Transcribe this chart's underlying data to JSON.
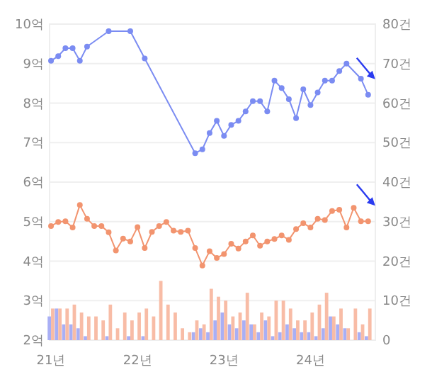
{
  "chart_data": {
    "type": "line",
    "x": [
      "2021-01",
      "2021-02",
      "2021-03",
      "2021-04",
      "2021-05",
      "2021-06",
      "2021-07",
      "2021-08",
      "2021-09",
      "2021-10",
      "2021-11",
      "2021-12",
      "2022-01",
      "2022-02",
      "2022-03",
      "2022-04",
      "2022-05",
      "2022-06",
      "2022-07",
      "2022-08",
      "2022-09",
      "2022-10",
      "2022-11",
      "2022-12",
      "2023-01",
      "2023-02",
      "2023-03",
      "2023-04",
      "2023-05",
      "2023-06",
      "2023-07",
      "2023-08",
      "2023-09",
      "2023-10",
      "2023-11",
      "2023-12",
      "2024-01",
      "2024-02",
      "2024-03",
      "2024-04",
      "2024-05",
      "2024-06",
      "2024-07",
      "2024-08",
      "2024-09"
    ],
    "series": [
      {
        "type": "bar",
        "axis": "y2",
        "color": "#a9aff5",
        "values": [
          6,
          8,
          4,
          4,
          3,
          1,
          0,
          0,
          1,
          0,
          0,
          1,
          0,
          1,
          0,
          0,
          0,
          0,
          0,
          0,
          2,
          3,
          2,
          5,
          7,
          4,
          3,
          5,
          4,
          2,
          5,
          1,
          2,
          4,
          3,
          2,
          2,
          1,
          3,
          6,
          4,
          3,
          0,
          2,
          1
        ]
      },
      {
        "type": "bar",
        "axis": "y2",
        "color": "#f8bca6",
        "values": [
          8,
          8,
          8,
          9,
          7,
          6,
          6,
          5,
          9,
          3,
          7,
          5,
          7,
          8,
          6,
          15,
          9,
          7,
          3,
          2,
          5,
          4,
          13,
          11,
          10,
          6,
          7,
          12,
          4,
          7,
          6,
          10,
          10,
          8,
          5,
          5,
          7,
          9,
          12,
          6,
          8,
          3,
          8,
          4,
          8
        ]
      },
      {
        "axis": "y",
        "color": "#7b8cf2",
        "marker": "circle",
        "values": [
          9.07,
          9.19,
          9.39,
          9.39,
          9.07,
          9.43,
          null,
          null,
          9.82,
          null,
          null,
          9.82,
          null,
          9.13,
          null,
          null,
          null,
          null,
          null,
          null,
          6.73,
          6.83,
          7.24,
          7.55,
          7.17,
          7.45,
          7.55,
          7.79,
          8.05,
          8.05,
          7.79,
          8.57,
          8.38,
          8.1,
          7.62,
          8.35,
          7.95,
          8.27,
          8.57,
          8.57,
          8.81,
          9.0,
          null,
          8.62,
          8.21
        ]
      },
      {
        "axis": "y",
        "color": "#f2946f",
        "marker": "circle",
        "values": [
          4.89,
          4.99,
          5.01,
          4.85,
          5.42,
          5.07,
          4.89,
          4.89,
          4.73,
          4.27,
          4.57,
          4.5,
          4.86,
          4.33,
          4.74,
          4.89,
          4.99,
          4.77,
          4.74,
          4.77,
          4.33,
          3.89,
          4.25,
          4.08,
          4.18,
          4.44,
          4.32,
          4.5,
          4.65,
          4.39,
          4.5,
          4.56,
          4.65,
          4.54,
          4.81,
          4.96,
          4.85,
          5.07,
          5.04,
          5.27,
          5.3,
          4.85,
          5.35,
          5.01,
          5.01
        ]
      }
    ],
    "xlim": [
      "2020-12-25",
      "2024-10-01"
    ],
    "xticks": [
      {
        "value": "2021-01",
        "label": "21년"
      },
      {
        "value": "2022-01",
        "label": "22년"
      },
      {
        "value": "2023-01",
        "label": "23년"
      },
      {
        "value": "2024-01",
        "label": "24년"
      }
    ],
    "ylim": [
      2,
      10
    ],
    "yticks": [
      {
        "value": 2,
        "label": "2억"
      },
      {
        "value": 3,
        "label": "3억"
      },
      {
        "value": 4,
        "label": "4억"
      },
      {
        "value": 5,
        "label": "5억"
      },
      {
        "value": 6,
        "label": "6억"
      },
      {
        "value": 7,
        "label": "7억"
      },
      {
        "value": 8,
        "label": "8억"
      },
      {
        "value": 9,
        "label": "9억"
      },
      {
        "value": 10,
        "label": "10억"
      }
    ],
    "y2lim": [
      0,
      80
    ],
    "y2ticks": [
      0,
      {
        "value": 10,
        "label": "10건"
      },
      {
        "value": 20,
        "label": "20건"
      },
      {
        "value": 30,
        "label": "30건"
      },
      {
        "value": 40,
        "label": "40건"
      },
      {
        "value": 50,
        "label": "50건"
      },
      {
        "value": 60,
        "label": "60건"
      },
      {
        "value": 70,
        "label": "70건"
      },
      {
        "value": 80,
        "label": "80건"
      }
    ],
    "grid": "y"
  }
}
